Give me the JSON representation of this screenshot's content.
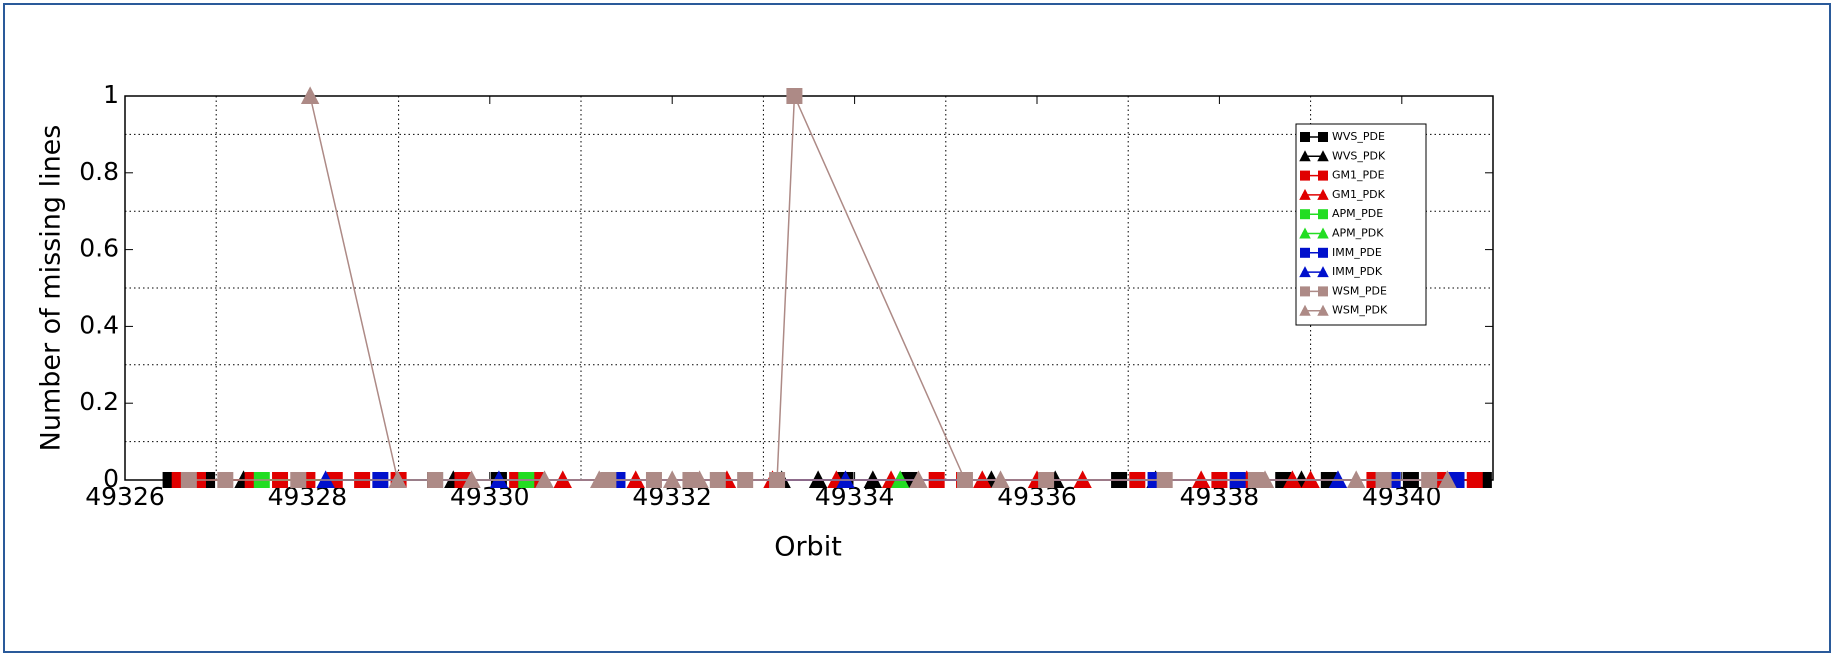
{
  "chart_data": {
    "type": "line",
    "xlabel": "Orbit",
    "ylabel": "Number of missing lines",
    "xlim": [
      49326,
      49341
    ],
    "ylim": [
      0,
      1
    ],
    "xticks": [
      49326,
      49328,
      49330,
      49332,
      49334,
      49336,
      49338,
      49340
    ],
    "yticks": [
      0,
      0.2,
      0.4,
      0.6,
      0.8,
      1
    ],
    "xgrid": [
      49327,
      49329,
      49331,
      49333,
      49335,
      49337,
      49339
    ],
    "ygrid": [
      0.1,
      0.3,
      0.5,
      0.7,
      0.9
    ],
    "legend": "upper right",
    "series": [
      {
        "name": "WVS_PDE",
        "color": "#000000",
        "marker": "square",
        "x": [
          49326.5,
          49326.9,
          49329.4,
          49330.1,
          49333.9,
          49334.6,
          49336.9,
          49338.7,
          49339.2,
          49340.1,
          49340.9
        ],
        "values": [
          0,
          0,
          0,
          0,
          0,
          0,
          0,
          0,
          0,
          0,
          0
        ]
      },
      {
        "name": "WVS_PDK",
        "color": "#000000",
        "marker": "triangle",
        "x": [
          49327.3,
          49329.6,
          49333.2,
          49333.6,
          49334.2,
          49335.5,
          49336.2,
          49337.3,
          49338.9
        ],
        "values": [
          0,
          0,
          0,
          0,
          0,
          0,
          0,
          0,
          0
        ]
      },
      {
        "name": "GM1_PDE",
        "color": "#e00000",
        "marker": "square",
        "x": [
          49326.6,
          49326.8,
          49327.4,
          49327.7,
          49328.0,
          49328.3,
          49328.6,
          49329.0,
          49329.7,
          49330.3,
          49330.5,
          49334.9,
          49335.2,
          49337.1,
          49338.0,
          49339.7,
          49340.4,
          49340.8
        ],
        "values": [
          0,
          0,
          0,
          0,
          0,
          0,
          0,
          0,
          0,
          0,
          0,
          0,
          0,
          0,
          0,
          0,
          0,
          0
        ]
      },
      {
        "name": "GM1_PDK",
        "color": "#e00000",
        "marker": "triangle",
        "x": [
          49330.8,
          49331.6,
          49332.6,
          49333.1,
          49333.8,
          49334.4,
          49335.4,
          49336.0,
          49336.5,
          49337.8,
          49338.3,
          49338.8,
          49339.0
        ],
        "values": [
          0,
          0,
          0,
          0,
          0,
          0,
          0,
          0,
          0,
          0,
          0,
          0,
          0
        ]
      },
      {
        "name": "APM_PDE",
        "color": "#22dd22",
        "marker": "square",
        "x": [
          49327.5,
          49330.4
        ],
        "values": [
          0,
          0
        ]
      },
      {
        "name": "APM_PDK",
        "color": "#22dd22",
        "marker": "triangle",
        "x": [
          49334.5
        ],
        "values": [
          0
        ]
      },
      {
        "name": "IMM_PDE",
        "color": "#0010cc",
        "marker": "square",
        "x": [
          49328.8,
          49331.4,
          49337.3,
          49338.2,
          49339.9,
          49340.6
        ],
        "values": [
          0,
          0,
          0,
          0,
          0,
          0
        ]
      },
      {
        "name": "IMM_PDK",
        "color": "#0010cc",
        "marker": "triangle",
        "x": [
          49328.2,
          49330.1,
          49333.9,
          49339.3
        ],
        "values": [
          0,
          0,
          0,
          0
        ]
      },
      {
        "name": "WSM_PDE",
        "color": "#ad8a86",
        "marker": "square",
        "x": [
          49326.7,
          49327.1,
          49327.9,
          49329.4,
          49331.3,
          49331.8,
          49332.2,
          49332.5,
          49332.8,
          49333.15,
          49333.34,
          49335.21,
          49336.1,
          49337.4,
          49338.4,
          49339.8,
          49340.3
        ],
        "values": [
          0,
          0,
          0,
          0,
          0,
          0,
          0,
          0,
          0,
          0,
          1,
          0,
          0,
          0,
          0,
          0,
          0
        ]
      },
      {
        "name": "WSM_PDK",
        "color": "#ad8a86",
        "marker": "triangle",
        "x": [
          49328.03,
          49328.99,
          49329.8,
          49330.6,
          49331.2,
          49332.0,
          49332.3,
          49334.7,
          49335.6,
          49338.5,
          49339.5,
          49340.5
        ],
        "values": [
          1,
          0,
          0,
          0,
          0,
          0,
          0,
          0,
          0,
          0,
          0,
          0
        ]
      }
    ]
  }
}
